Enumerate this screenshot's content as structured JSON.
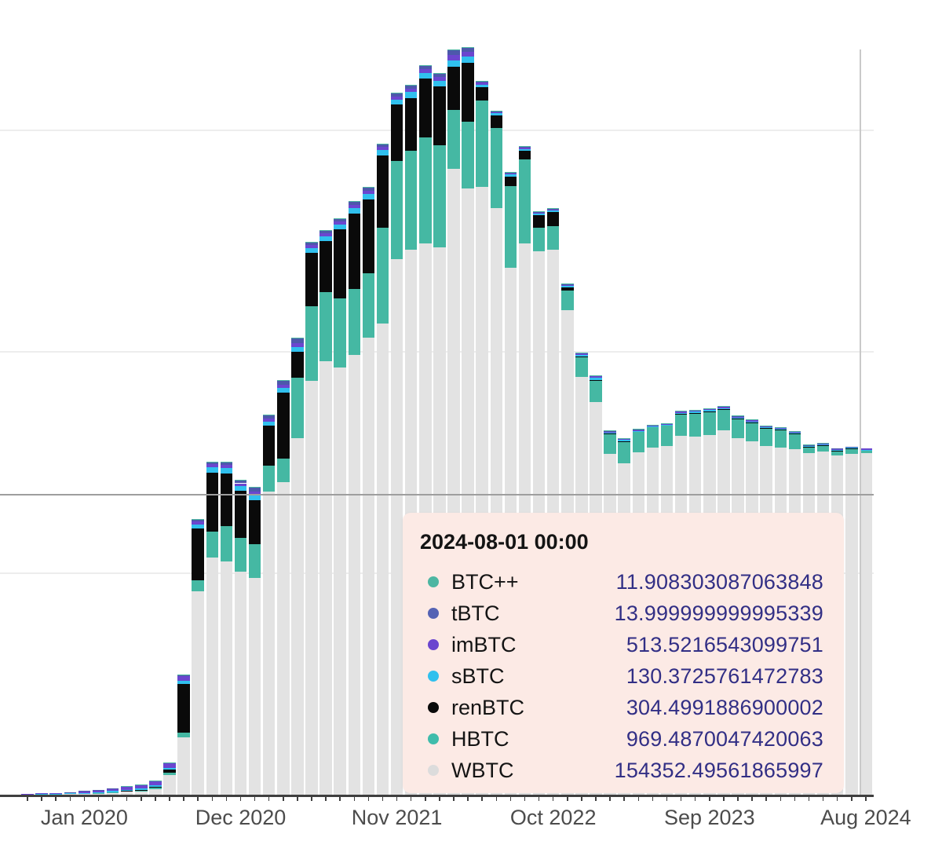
{
  "colors": {
    "tooltip_bg": "#fceae5",
    "value_text": "#322f85",
    "label_text": "#141414",
    "axis_line": "#3f3f3f",
    "grid_line": "#ededed",
    "crosshair_v": "#c9c9c9",
    "crosshair_h": "#9e9e9e",
    "tick_label": "#4c4c4c"
  },
  "tooltip": {
    "title": "2024-08-01 00:00",
    "rows": [
      {
        "label": "BTC++",
        "value": "11.908303087063848",
        "color": "#4db6a2"
      },
      {
        "label": "tBTC",
        "value": "13.999999999995339",
        "color": "#5563b4"
      },
      {
        "label": "imBTC",
        "value": "513.5216543099751",
        "color": "#6b46cf"
      },
      {
        "label": "sBTC",
        "value": "130.3725761472783",
        "color": "#30c0ee"
      },
      {
        "label": "renBTC",
        "value": "304.4991886900002",
        "color": "#0a0a0a"
      },
      {
        "label": "HBTC",
        "value": "969.4870047420063",
        "color": "#3fbcab"
      },
      {
        "label": "WBTC",
        "value": "154352.49561865997",
        "color": "#dcdcdc"
      }
    ]
  },
  "chart_data": {
    "type": "bar",
    "stacked": true,
    "title": "",
    "xlabel": "",
    "ylabel": "",
    "ylim": [
      0,
      355000
    ],
    "grid": true,
    "y_gridlines": [
      100000,
      200000,
      300000
    ],
    "legend_position": "tooltip-only",
    "x": [
      "2019-09",
      "2019-10",
      "2019-11",
      "2019-12",
      "2020-01",
      "2020-02",
      "2020-03",
      "2020-04",
      "2020-05",
      "2020-06",
      "2020-07",
      "2020-08",
      "2020-09",
      "2020-10",
      "2020-11",
      "2020-12",
      "2021-01",
      "2021-02",
      "2021-03",
      "2021-04",
      "2021-05",
      "2021-06",
      "2021-07",
      "2021-08",
      "2021-09",
      "2021-10",
      "2021-11",
      "2021-12",
      "2022-01",
      "2022-02",
      "2022-03",
      "2022-04",
      "2022-05",
      "2022-06",
      "2022-07",
      "2022-08",
      "2022-09",
      "2022-10",
      "2022-11",
      "2022-12",
      "2023-01",
      "2023-02",
      "2023-03",
      "2023-04",
      "2023-05",
      "2023-06",
      "2023-07",
      "2023-08",
      "2023-09",
      "2023-10",
      "2023-11",
      "2023-12",
      "2024-01",
      "2024-02",
      "2024-03",
      "2024-04",
      "2024-05",
      "2024-06",
      "2024-07",
      "2024-08"
    ],
    "x_tick_labels": [
      "Jan 2020",
      "Dec 2020",
      "Nov 2021",
      "Oct 2022",
      "Sep 2023",
      "Aug 2024"
    ],
    "x_tick_label_indices": [
      4,
      15,
      26,
      37,
      48,
      59
    ],
    "series_note": "series listed top-to-bottom of stack (tooltip order); stacking bottom-to-top is reverse",
    "series": [
      {
        "name": "BTC++",
        "color": "#4db6a2",
        "values": [
          0,
          0,
          0,
          0,
          0,
          0,
          20,
          40,
          60,
          80,
          100,
          150,
          200,
          200,
          200,
          200,
          200,
          300,
          300,
          300,
          300,
          300,
          300,
          300,
          300,
          300,
          300,
          300,
          300,
          300,
          300,
          300,
          200,
          200,
          200,
          200,
          150,
          150,
          120,
          120,
          120,
          100,
          100,
          80,
          80,
          80,
          80,
          80,
          80,
          80,
          60,
          60,
          50,
          50,
          50,
          30,
          30,
          20,
          20,
          11.908303087063848
        ]
      },
      {
        "name": "tBTC",
        "color": "#4d58ab",
        "values": [
          0,
          0,
          0,
          50,
          80,
          120,
          150,
          200,
          300,
          350,
          400,
          500,
          700,
          1000,
          1200,
          1500,
          1800,
          1500,
          2000,
          2200,
          1200,
          1200,
          1200,
          1400,
          1400,
          1300,
          1300,
          1500,
          1500,
          1500,
          2000,
          1800,
          700,
          500,
          500,
          500,
          400,
          400,
          300,
          400,
          500,
          250,
          250,
          150,
          150,
          150,
          250,
          350,
          350,
          350,
          250,
          250,
          250,
          250,
          250,
          150,
          150,
          150,
          100,
          13.999999999995339
        ]
      },
      {
        "name": "imBTC",
        "color": "#6b46cf",
        "values": [
          150,
          250,
          400,
          600,
          700,
          900,
          1100,
          1300,
          1500,
          1700,
          1900,
          2200,
          1400,
          1500,
          1500,
          1400,
          1400,
          1300,
          1500,
          1600,
          1500,
          1500,
          1500,
          1600,
          1600,
          1500,
          1500,
          1600,
          1600,
          1600,
          2500,
          2200,
          800,
          600,
          600,
          600,
          520,
          520,
          513,
          513,
          513,
          513,
          513,
          513,
          513,
          513,
          513,
          513,
          513,
          513,
          513,
          513,
          513,
          513,
          513,
          513,
          513,
          513,
          513,
          513.5216543099751
        ]
      },
      {
        "name": "sBTC",
        "color": "#30c0ee",
        "values": [
          60,
          80,
          120,
          180,
          200,
          300,
          400,
          500,
          600,
          700,
          900,
          1500,
          1800,
          2500,
          2300,
          2000,
          2600,
          1900,
          2000,
          2200,
          2100,
          2100,
          2100,
          2400,
          2400,
          2300,
          2300,
          2600,
          2600,
          2600,
          3000,
          2800,
          1200,
          900,
          900,
          900,
          700,
          700,
          700,
          800,
          1200,
          500,
          500,
          300,
          300,
          300,
          500,
          600,
          600,
          600,
          500,
          500,
          500,
          500,
          500,
          300,
          300,
          300,
          300,
          130.3725761472783
        ]
      },
      {
        "name": "renBTC",
        "color": "#0a0a0a",
        "values": [
          0,
          0,
          0,
          0,
          0,
          0,
          20,
          80,
          200,
          400,
          1500,
          22000,
          23400,
          26600,
          23800,
          21300,
          20000,
          18000,
          30000,
          11700,
          24100,
          23000,
          31200,
          34000,
          33300,
          32600,
          25500,
          23800,
          26600,
          26600,
          19500,
          26600,
          6000,
          5700,
          4300,
          3900,
          5700,
          6400,
          1400,
          300,
          300,
          250,
          250,
          250,
          250,
          250,
          280,
          290,
          300,
          300,
          300,
          300,
          300,
          300,
          300,
          304,
          304,
          304,
          304,
          304.4991886900002
        ]
      },
      {
        "name": "HBTC",
        "color": "#45b8a3",
        "values": [
          0,
          0,
          0,
          0,
          100,
          200,
          300,
          400,
          500,
          600,
          800,
          2000,
          4900,
          11700,
          16000,
          15200,
          15000,
          11500,
          10600,
          27300,
          33700,
          31200,
          31200,
          29800,
          29100,
          43300,
          44300,
          44700,
          47900,
          46100,
          26600,
          30100,
          39000,
          36200,
          36900,
          37900,
          10600,
          10600,
          8900,
          8900,
          9600,
          8900,
          9900,
          9200,
          9200,
          9200,
          9600,
          10300,
          10300,
          9200,
          8500,
          8200,
          7800,
          7800,
          6700,
          2500,
          2500,
          1800,
          2100,
          969.4870047420063
        ]
      },
      {
        "name": "WBTC",
        "color": "#e3e3e3",
        "values": [
          300,
          320,
          350,
          380,
          560,
          600,
          900,
          1300,
          1500,
          2600,
          9000,
          26000,
          92000,
          107000,
          105300,
          100700,
          98000,
          137000,
          141000,
          161000,
          186900,
          195700,
          192900,
          198600,
          206400,
          212800,
          241800,
          246100,
          248900,
          247200,
          282600,
          273800,
          274500,
          264900,
          237900,
          248900,
          245400,
          246100,
          218800,
          188700,
          177300,
          153900,
          149600,
          154600,
          156700,
          157400,
          162100,
          161700,
          162400,
          164500,
          161000,
          159600,
          157400,
          156700,
          156000,
          154200,
          155000,
          153200,
          153900,
          154352.49561865997
        ]
      }
    ]
  }
}
